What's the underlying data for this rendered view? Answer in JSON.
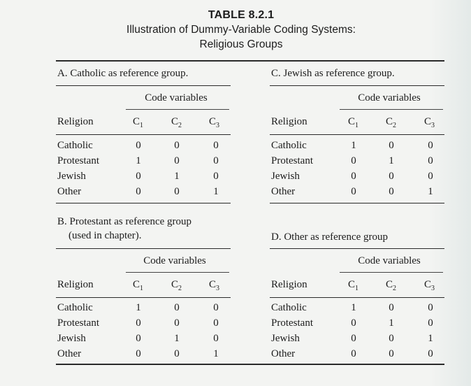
{
  "title": {
    "main": "TABLE 8.2.1",
    "line1": "Illustration of Dummy-Variable Coding Systems:",
    "line2": "Religious Groups"
  },
  "code_variables_label": "Code variables",
  "religion_header": "Religion",
  "columns": [
    "C",
    "C",
    "C"
  ],
  "column_subscripts": [
    "1",
    "2",
    "3"
  ],
  "panels": [
    {
      "title_line1": "A. Catholic as reference group.",
      "title_line2": "",
      "rows": [
        {
          "religion": "Catholic",
          "values": [
            "0",
            "0",
            "0"
          ]
        },
        {
          "religion": "Protestant",
          "values": [
            "1",
            "0",
            "0"
          ]
        },
        {
          "religion": "Jewish",
          "values": [
            "0",
            "1",
            "0"
          ]
        },
        {
          "religion": "Other",
          "values": [
            "0",
            "0",
            "1"
          ]
        }
      ]
    },
    {
      "title_line1": "C. Jewish as reference group.",
      "title_line2": "",
      "rows": [
        {
          "religion": "Catholic",
          "values": [
            "1",
            "0",
            "0"
          ]
        },
        {
          "religion": "Protestant",
          "values": [
            "0",
            "1",
            "0"
          ]
        },
        {
          "religion": "Jewish",
          "values": [
            "0",
            "0",
            "0"
          ]
        },
        {
          "religion": "Other",
          "values": [
            "0",
            "0",
            "1"
          ]
        }
      ]
    },
    {
      "title_line1": "B. Protestant as reference group",
      "title_line2": "(used in chapter).",
      "rows": [
        {
          "religion": "Catholic",
          "values": [
            "1",
            "0",
            "0"
          ]
        },
        {
          "religion": "Protestant",
          "values": [
            "0",
            "0",
            "0"
          ]
        },
        {
          "religion": "Jewish",
          "values": [
            "0",
            "1",
            "0"
          ]
        },
        {
          "religion": "Other",
          "values": [
            "0",
            "0",
            "1"
          ]
        }
      ]
    },
    {
      "title_line1": "D. Other as reference group",
      "title_line2": "",
      "rows": [
        {
          "religion": "Catholic",
          "values": [
            "1",
            "0",
            "0"
          ]
        },
        {
          "religion": "Protestant",
          "values": [
            "0",
            "1",
            "0"
          ]
        },
        {
          "religion": "Jewish",
          "values": [
            "0",
            "0",
            "1"
          ]
        },
        {
          "religion": "Other",
          "values": [
            "0",
            "0",
            "0"
          ]
        }
      ]
    }
  ]
}
